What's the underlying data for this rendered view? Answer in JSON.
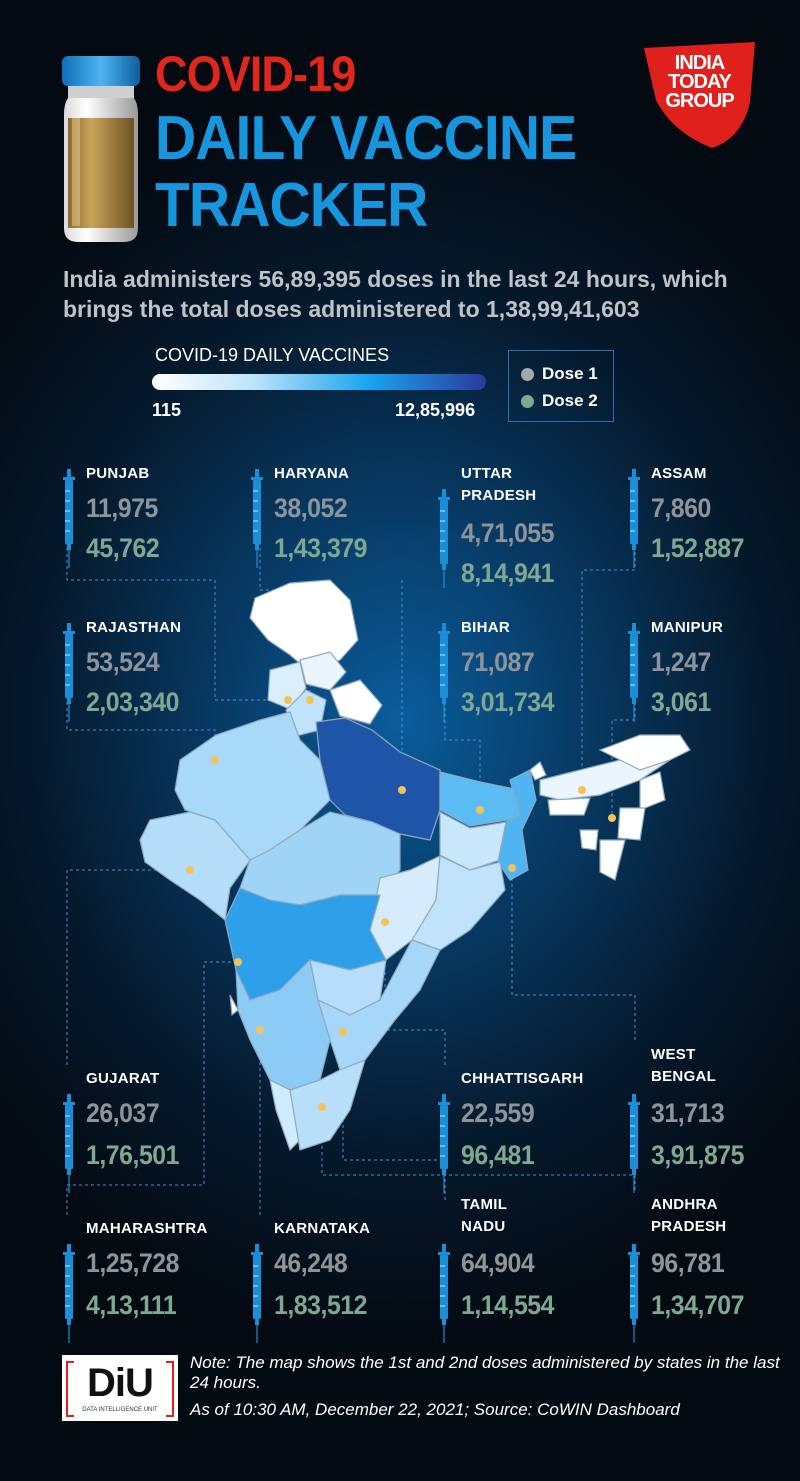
{
  "title": {
    "line1": "COVID-19",
    "line2": "DAILY VACCINE",
    "line3": "TRACKER"
  },
  "publisher_logo": {
    "lines": [
      "INDIA",
      "TODAY",
      "GROUP"
    ]
  },
  "subtitle": "India administers 56,89,395 doses in the last 24 hours, which brings the total doses administered to 1,38,99,41,603",
  "legend": {
    "title": "COVID-19 DAILY VACCINES",
    "min": "115",
    "max": "12,85,996",
    "dose1_label": "Dose 1",
    "dose2_label": "Dose 2"
  },
  "colors": {
    "dose1": "#8e9499",
    "dose2": "#7fa892",
    "accent_red": "#e3261b",
    "accent_blue": "#1796de"
  },
  "states": {
    "punjab": {
      "name": "PUNJAB",
      "dose1": "11,975",
      "dose2": "45,762"
    },
    "haryana": {
      "name": "HARYANA",
      "dose1": "38,052",
      "dose2": "1,43,379"
    },
    "uttar_pradesh": {
      "name": "UTTAR\nPRADESH",
      "dose1": "4,71,055",
      "dose2": "8,14,941"
    },
    "assam": {
      "name": "ASSAM",
      "dose1": "7,860",
      "dose2": "1,52,887"
    },
    "rajasthan": {
      "name": "RAJASTHAN",
      "dose1": "53,524",
      "dose2": "2,03,340"
    },
    "bihar": {
      "name": "BIHAR",
      "dose1": "71,087",
      "dose2": "3,01,734"
    },
    "manipur": {
      "name": "MANIPUR",
      "dose1": "1,247",
      "dose2": "3,061"
    },
    "gujarat": {
      "name": "GUJARAT",
      "dose1": "26,037",
      "dose2": "1,76,501"
    },
    "chhattisgarh": {
      "name": "CHHATTISGARH",
      "dose1": "22,559",
      "dose2": "96,481"
    },
    "west_bengal": {
      "name": "WEST\nBENGAL",
      "dose1": "31,713",
      "dose2": "3,91,875"
    },
    "maharashtra": {
      "name": "MAHARASHTRA",
      "dose1": "1,25,728",
      "dose2": "4,13,111"
    },
    "karnataka": {
      "name": "KARNATAKA",
      "dose1": "46,248",
      "dose2": "1,83,512"
    },
    "tamil_nadu": {
      "name": "TAMIL\nNADU",
      "dose1": "64,904",
      "dose2": "1,14,554"
    },
    "andhra_pradesh": {
      "name": "ANDHRA\nPRADESH",
      "dose1": "96,781",
      "dose2": "1,34,707"
    }
  },
  "footer": {
    "note": "Note: The map shows the 1st and 2nd doses administered by states in the last 24 hours.",
    "source": "As of 10:30 AM, December 22, 2021; Source: CoWIN Dashboard",
    "logo_text": "DiU",
    "logo_subtext": "DATA INTELLIGENCE UNIT"
  }
}
